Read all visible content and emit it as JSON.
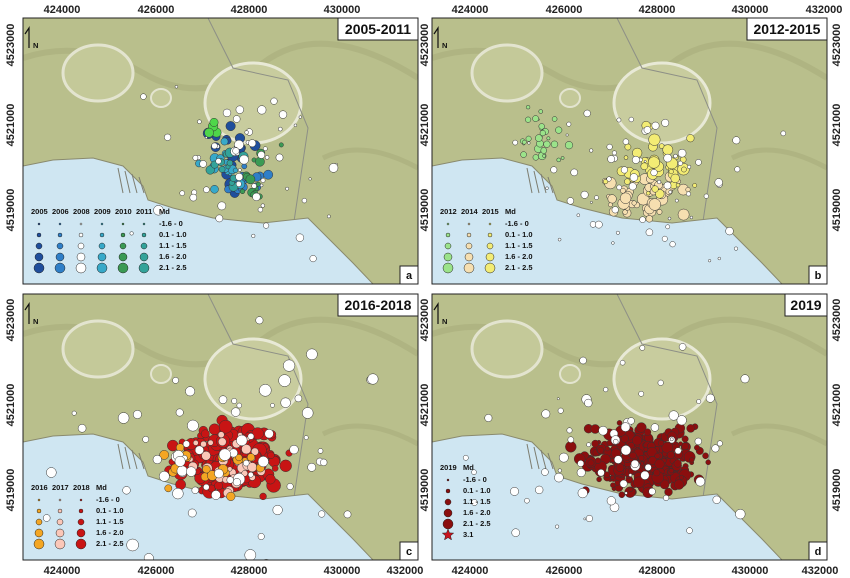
{
  "x_ticks": [
    "424000",
    "426000",
    "428000",
    "430000",
    "432000"
  ],
  "y_ticks_left": [
    "4523000",
    "4521000",
    "4519000"
  ],
  "y_ticks_right": [
    "4523000",
    "4521000",
    "4519000"
  ],
  "north_label": "N",
  "palette": {
    "land": "#b9bf8c",
    "sea": "#cfe6f2",
    "coast": "#8a8a6e",
    "2005": "#1f4e9c",
    "2006": "#2f7fc8",
    "2009": "#37a9c9",
    "2010": "#3b9a54",
    "2011": "#33a39a",
    "green": "#4fd64a",
    "2012": "#9be38a",
    "2014": "#f6dfb0",
    "2015": "#f3ec74",
    "2016": "#f4a623",
    "2017": "#fbc7b8",
    "2018": "#c81414",
    "2019": "#8b0e0e",
    "white": "#ffffff"
  },
  "panels": [
    {
      "title": "2005-2011",
      "letter": "a",
      "legend": {
        "headers": [
          "2005",
          "2006",
          "2008",
          "2009",
          "2010",
          "2011",
          "Md"
        ],
        "md_classes": [
          "-1.6 - 0",
          "0.1 - 1.0",
          "1.1 - 1.5",
          "1.6 - 2.0",
          "2.1 - 2.5"
        ]
      }
    },
    {
      "title": "2012-2015",
      "letter": "b",
      "legend": {
        "headers": [
          "2012",
          "2014",
          "2015",
          "Md"
        ],
        "md_classes": [
          "-1.6 - 0",
          "0.1 - 1.0",
          "1.1 - 1.5",
          "1.6 - 2.0",
          "2.1 - 2.5"
        ]
      }
    },
    {
      "title": "2016-2018",
      "letter": "c",
      "legend": {
        "headers": [
          "2016",
          "2017",
          "2018",
          "Md"
        ],
        "md_classes": [
          "-1.6 - 0",
          "0.1 - 1.0",
          "1.1 - 1.5",
          "1.6 - 2.0",
          "2.1 - 2.5"
        ]
      }
    },
    {
      "title": "2019",
      "letter": "d",
      "legend": {
        "headers": [
          "2019",
          "Md"
        ],
        "md_classes": [
          "-1.6 - 0",
          "0.1 - 1.0",
          "1.1 - 1.5",
          "1.6 - 2.0",
          "2.1 - 2.5",
          "3.1"
        ]
      }
    }
  ]
}
